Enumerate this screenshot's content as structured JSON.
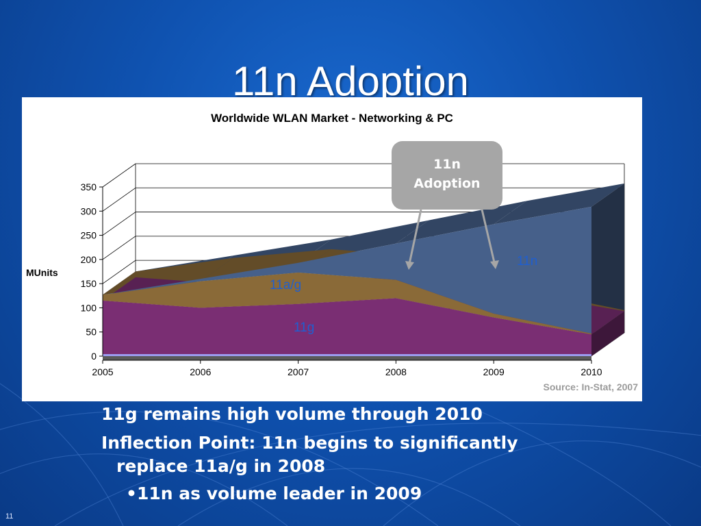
{
  "slide": {
    "title": "11n Adoption",
    "number": "11"
  },
  "callout": {
    "text": "11n\nAdoption"
  },
  "bullets": [
    "11g remains high volume through 2010",
    "Inflection Point: 11n begins to significantly",
    "replace 11a/g in 2008",
    "11n as volume leader in 2009"
  ],
  "chart_data": {
    "type": "area",
    "title": "Worldwide WLAN Market - Networking & PC",
    "ylabel": "MUnits",
    "xlabel": "",
    "source": "Source: In-Stat, 2007",
    "stacked": true,
    "three_d": true,
    "x": [
      2005,
      2006,
      2007,
      2008,
      2009,
      2010
    ],
    "x_tick_labels": [
      "2005",
      "2006",
      "2007",
      "2008",
      "2009",
      "2010"
    ],
    "y_ticks": [
      0,
      50,
      100,
      150,
      200,
      250,
      300,
      350
    ],
    "ylim": [
      0,
      350
    ],
    "grid": true,
    "series": [
      {
        "name": "11g",
        "color": "#7a2e73",
        "values": [
          115,
          100,
          108,
          120,
          80,
          45
        ]
      },
      {
        "name": "11a/g",
        "color": "#8a6a38",
        "values": [
          12,
          55,
          65,
          38,
          8,
          2
        ]
      },
      {
        "name": "11n",
        "color": "#46608a",
        "values": [
          0,
          5,
          20,
          75,
          185,
          262
        ]
      }
    ]
  },
  "colors": {
    "background": "#0f52b0",
    "label_blue": "#1f5fd0",
    "source_gray": "#9a9a9a"
  }
}
